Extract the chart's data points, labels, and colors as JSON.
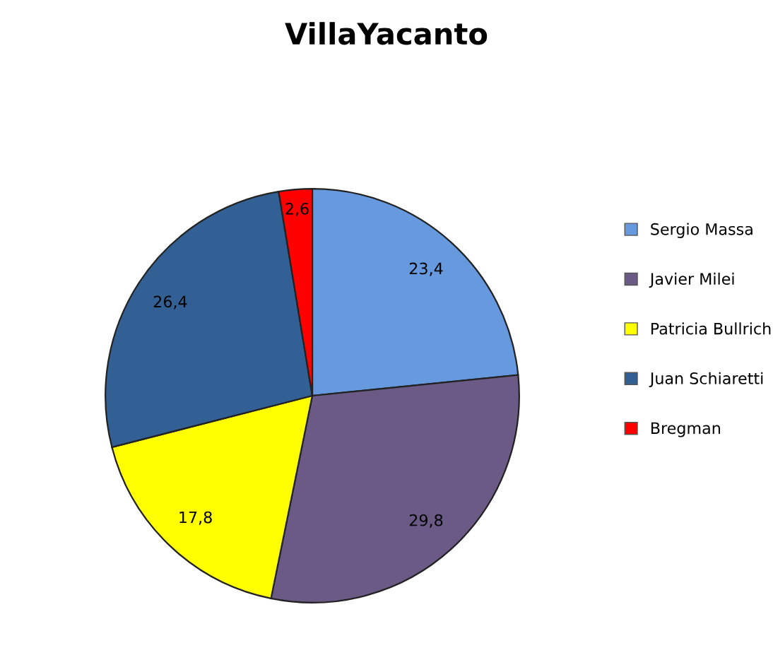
{
  "chart_data": {
    "type": "pie",
    "title": "VillaYacanto",
    "categories": [
      "Sergio Massa",
      "Javier Milei",
      "Patricia Bullrich",
      "Juan Schiaretti",
      "Bregman"
    ],
    "values": [
      23.4,
      29.8,
      17.8,
      26.4,
      2.6
    ],
    "value_labels": [
      "23,4",
      "29,8",
      "17,8",
      "26,4",
      "2,6"
    ],
    "colors": [
      "#6699dd",
      "#6b5a85",
      "#ffff00",
      "#336094",
      "#ff0000"
    ],
    "legend": "right"
  }
}
